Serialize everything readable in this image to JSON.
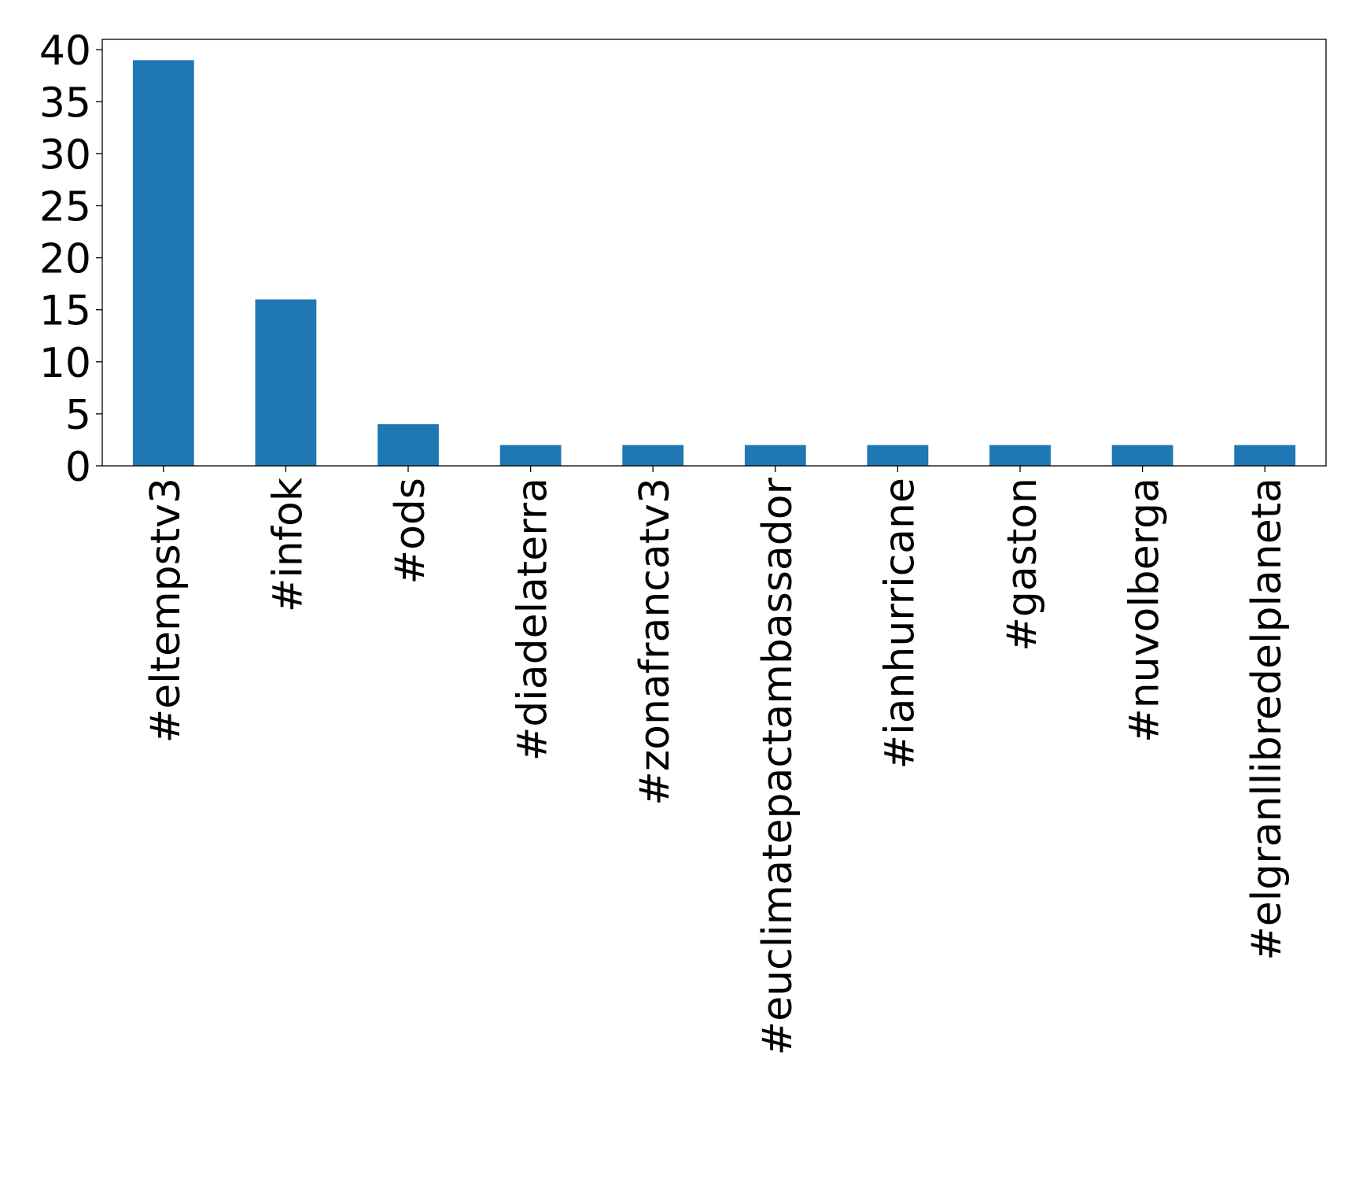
{
  "chart_data": {
    "type": "bar",
    "title": "",
    "xlabel": "",
    "ylabel": "",
    "categories": [
      "#eltempstv3",
      "#infok",
      "#ods",
      "#diadelaterra",
      "#zonafrancatv3",
      "#euclimatepactambassador",
      "#ianhurricane",
      "#gaston",
      "#nuvolberga",
      "#elgranllibredelplaneta"
    ],
    "values": [
      39,
      16,
      4,
      2,
      2,
      2,
      2,
      2,
      2,
      2
    ],
    "ylim": [
      0,
      41
    ],
    "yticks": [
      0,
      5,
      10,
      15,
      20,
      25,
      30,
      35,
      40
    ],
    "bar_color": "#1f77b4",
    "grid": false,
    "legend": "none"
  }
}
